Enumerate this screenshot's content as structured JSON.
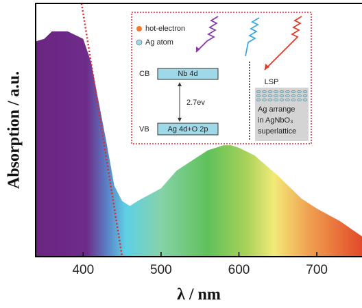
{
  "chart_data": {
    "type": "area",
    "xlabel": "λ / nm",
    "ylabel": "Absorption / a.u.",
    "x": [
      339,
      350,
      360,
      380,
      400,
      410,
      420,
      430,
      440,
      450,
      460,
      470,
      500,
      520,
      540,
      560,
      580,
      590,
      600,
      620,
      650,
      680,
      700,
      730,
      758
    ],
    "values": [
      0.85,
      0.86,
      0.89,
      0.89,
      0.86,
      0.77,
      0.61,
      0.45,
      0.28,
      0.22,
      0.2,
      0.22,
      0.27,
      0.34,
      0.38,
      0.42,
      0.44,
      0.44,
      0.43,
      0.4,
      0.32,
      0.23,
      0.19,
      0.14,
      0.08
    ],
    "xlim": [
      339,
      758
    ],
    "ylim": [
      0,
      1
    ],
    "xticks": [
      400,
      500,
      600,
      700
    ],
    "gradient": [
      {
        "x": 339,
        "color": "#6b2482"
      },
      {
        "x": 405,
        "color": "#6e2c8a"
      },
      {
        "x": 430,
        "color": "#5a7fc4"
      },
      {
        "x": 455,
        "color": "#5ed0e6"
      },
      {
        "x": 500,
        "color": "#86d2a8"
      },
      {
        "x": 560,
        "color": "#5fc15a"
      },
      {
        "x": 610,
        "color": "#a9d25a"
      },
      {
        "x": 645,
        "color": "#f2ea78"
      },
      {
        "x": 690,
        "color": "#f0a050"
      },
      {
        "x": 758,
        "color": "#e24a2a"
      }
    ],
    "trend_line": {
      "x": [
        398,
        450
      ],
      "y": [
        1,
        0
      ],
      "color": "#e0262a"
    },
    "inset": {
      "legend": [
        {
          "name": "hot-electron",
          "color": "#f07a30"
        },
        {
          "name": "Ag atom",
          "color": "#9fd8e6"
        }
      ],
      "cb": "CB",
      "cb_level": "Nb 4d",
      "gap": "2.7ev",
      "vb": "VB",
      "vb_level": "Ag 4d+O 2p",
      "lsp": "LSP",
      "lsp_note": [
        "Ag arrange",
        "in AgNbO₃",
        "superlattice"
      ]
    }
  }
}
